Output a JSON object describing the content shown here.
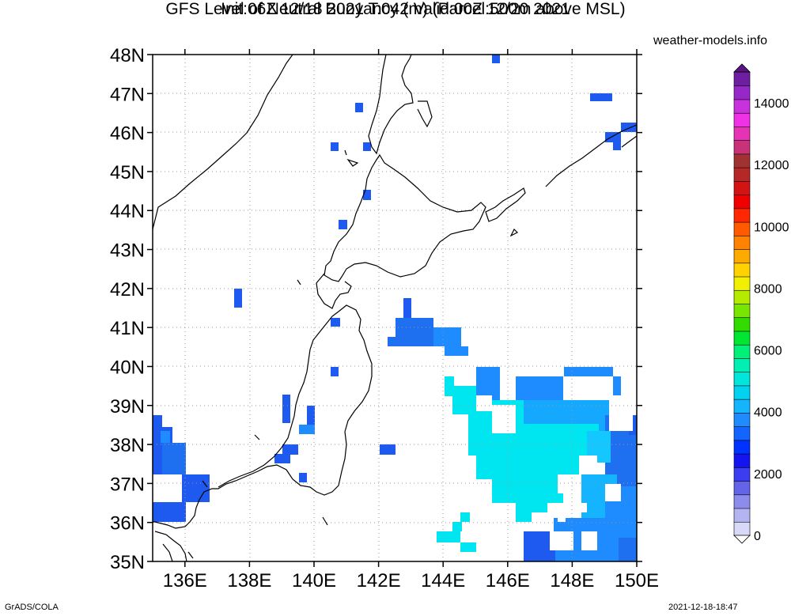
{
  "title_line1": "GFS Level of Neutral Buoyancy (m) (Parcel:500m above MSL)",
  "title_line2": "Init:06Z 12/18 2021 T:042 Valid:00Z 12/20 2021",
  "site": "weather-models.info",
  "footer_left": "GrADS/COLA",
  "footer_right": "2021-12-18-18:47",
  "lat_labels": [
    "48N",
    "47N",
    "46N",
    "45N",
    "44N",
    "43N",
    "42N",
    "41N",
    "40N",
    "39N",
    "38N",
    "37N",
    "36N",
    "35N"
  ],
  "lon_labels": [
    "136E",
    "138E",
    "140E",
    "142E",
    "144E",
    "146E",
    "148E",
    "150E"
  ],
  "map_extent": {
    "lon_min": 135,
    "lon_max": 150,
    "lat_min": 35,
    "lat_max": 48
  },
  "colorbar": {
    "labels": [
      "0",
      "2000",
      "4000",
      "6000",
      "8000",
      "10000",
      "12000",
      "14000"
    ],
    "min": 0,
    "max": 15000,
    "colors": [
      "#d8d8f8",
      "#b4b4f0",
      "#8c8cec",
      "#6464e8",
      "#3c3cf0",
      "#1414f0",
      "#0032ff",
      "#1464ff",
      "#1e8cff",
      "#14b4ff",
      "#00d2f0",
      "#00e6dc",
      "#00f0b4",
      "#00f078",
      "#00e632",
      "#32dc00",
      "#78e600",
      "#b4eb00",
      "#f0f000",
      "#ffd200",
      "#ffaa00",
      "#ff8200",
      "#ff5a00",
      "#ff2800",
      "#f00000",
      "#d21414",
      "#b42828",
      "#a03232",
      "#c83278",
      "#e632b4",
      "#f032e6",
      "#c832dc",
      "#9628c8",
      "#6e1ea0"
    ]
  },
  "colors": {
    "lnb_2000": "#1e5af0",
    "lnb_2500": "#1e8cff",
    "lnb_3000": "#14c8ff",
    "lnb_3500": "#00f0f0",
    "coast": "#000000"
  }
}
